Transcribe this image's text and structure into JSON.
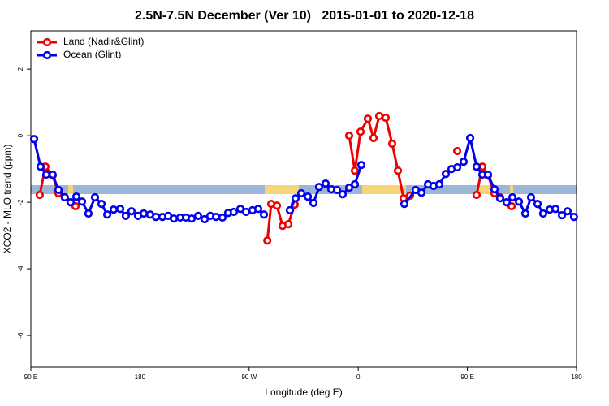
{
  "chart_data": {
    "type": "line",
    "title": "2.5N-7.5N December (Ver 10)   2015-01-01 to 2020-12-18",
    "x_label": "Longitude (deg E)",
    "y_label": "XCO2 - MLO trend (ppm)",
    "xlim": [
      90,
      540
    ],
    "ylim": [
      -6.95,
      3.15
    ],
    "xticks": [
      {
        "value": 90,
        "label": "90 E"
      },
      180,
      {
        "value": 270,
        "label": "90 W"
      },
      {
        "value": 360,
        "label": "0"
      },
      {
        "value": 450,
        "label": "90 E"
      },
      {
        "value": 540,
        "label": "180"
      }
    ],
    "yticks": [
      -6,
      -4,
      -2,
      0,
      2
    ],
    "legend": "top-left",
    "series": [
      {
        "name": "Land (Nadir&Glint)",
        "color": "#ee0000",
        "x": [
          97.3,
          102,
          108,
          112.8,
          118,
          122.8,
          126.8,
          200,
          285,
          288.2,
          292.9,
          297.6,
          302.3,
          307.6,
          330,
          352.5,
          357.2,
          361.9,
          367.9,
          372.6,
          377.3,
          382.6,
          388,
          392.7,
          397.4,
          402.7,
          420,
          441.6,
          450,
          457.6,
          462.3,
          467,
          472.4,
          477,
          482.4,
          486.5
        ],
        "values": [
          -1.78,
          -0.93,
          -1.2,
          -1.73,
          -1.85,
          -2.0,
          -2.12,
          null,
          -3.15,
          -2.05,
          -2.1,
          -2.71,
          -2.66,
          -2.07,
          null,
          0.0,
          -1.05,
          0.12,
          0.51,
          -0.07,
          0.59,
          0.54,
          -0.24,
          -1.05,
          -1.88,
          -1.8,
          null,
          -0.46,
          null,
          -1.78,
          -0.93,
          -1.2,
          -1.73,
          -1.85,
          -2.0,
          -2.12
        ]
      },
      {
        "name": "Ocean (Glint)",
        "color": "#0000ee",
        "x": [
          92.7,
          98,
          102.7,
          108,
          112.8,
          118,
          122.8,
          127.5,
          132.2,
          137.5,
          142.9,
          148.3,
          153,
          158.3,
          163.7,
          168.3,
          173,
          178.4,
          183.1,
          188.4,
          193.1,
          198.5,
          203.2,
          207.9,
          213.2,
          217.9,
          222.6,
          227.9,
          233.3,
          238,
          242.7,
          248,
          252.7,
          257.4,
          262.8,
          267.5,
          272.8,
          277.5,
          282.2,
          290,
          303.6,
          308.3,
          313,
          318.4,
          323.1,
          327.7,
          333.1,
          337.8,
          342.5,
          347.1,
          352.5,
          357.2,
          362.5,
          380,
          398,
          407.4,
          412.1,
          417.5,
          422.1,
          426.8,
          432.2,
          436.9,
          441.6,
          446.9,
          452.3,
          457.6,
          462.3,
          467,
          472.4,
          477,
          482.4,
          487.1,
          492.5,
          497.8,
          502.5,
          507.9,
          512.5,
          517.9,
          522.6,
          528,
          532.6,
          537.9
        ],
        "values": [
          -0.1,
          -0.93,
          -1.17,
          -1.17,
          -1.63,
          -1.85,
          -2.0,
          -1.83,
          -1.98,
          -2.34,
          -1.85,
          -2.05,
          -2.37,
          -2.22,
          -2.2,
          -2.41,
          -2.27,
          -2.41,
          -2.34,
          -2.37,
          -2.44,
          -2.44,
          -2.41,
          -2.49,
          -2.46,
          -2.46,
          -2.49,
          -2.41,
          -2.51,
          -2.41,
          -2.44,
          -2.46,
          -2.32,
          -2.29,
          -2.2,
          -2.29,
          -2.24,
          -2.2,
          -2.37,
          null,
          -2.24,
          -1.88,
          -1.73,
          -1.83,
          -2.02,
          -1.54,
          -1.44,
          -1.61,
          -1.63,
          -1.76,
          -1.56,
          -1.46,
          -0.88,
          null,
          -2.05,
          -1.63,
          -1.71,
          -1.46,
          -1.51,
          -1.46,
          -1.15,
          -1.0,
          -0.95,
          -0.78,
          -0.07,
          -0.93,
          -1.17,
          -1.17,
          -1.61,
          -1.88,
          -2.0,
          -1.85,
          -1.98,
          -2.34,
          -1.85,
          -2.05,
          -2.34,
          -2.22,
          -2.2,
          -2.39,
          -2.27,
          -2.44
        ]
      }
    ]
  }
}
